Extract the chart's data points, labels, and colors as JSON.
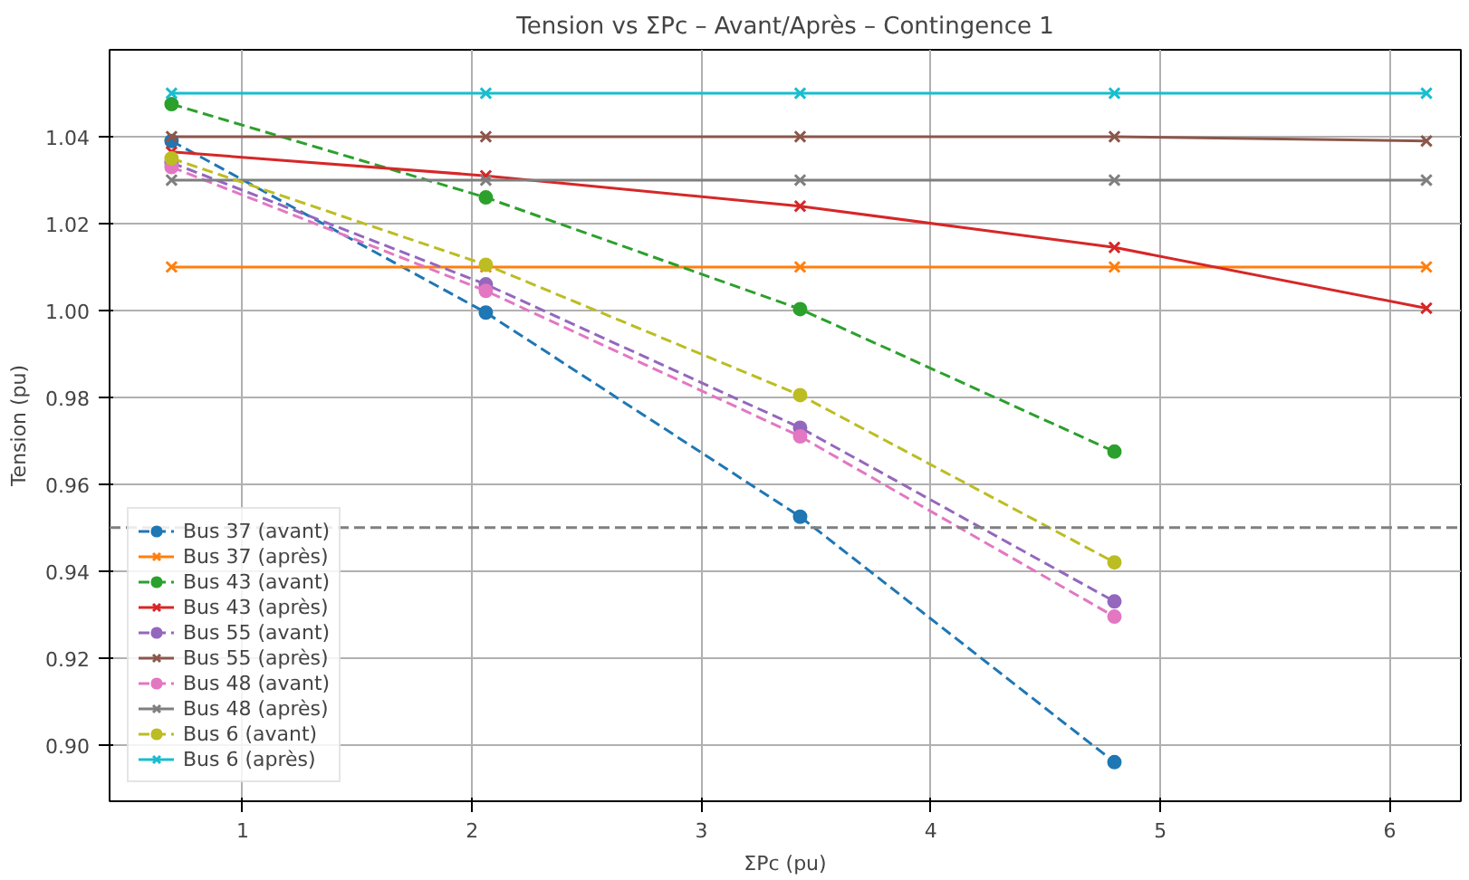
{
  "chart_data": {
    "type": "line",
    "title": "Tension vs ΣPc – Avant/Après – Contingence 1",
    "xlabel": "ΣPc (pu)",
    "ylabel": "Tension (pu)",
    "xlim": [
      0.42,
      6.31
    ],
    "xticks": [
      1,
      2,
      3,
      4,
      5,
      6
    ],
    "ylim": [
      0.887,
      1.06
    ],
    "yticks": [
      {
        "value": 0.9,
        "label": "0.90"
      },
      {
        "value": 0.92,
        "label": "0.92"
      },
      {
        "value": 0.94,
        "label": "0.94"
      },
      {
        "value": 0.96,
        "label": "0.96"
      },
      {
        "value": 0.98,
        "label": "0.98"
      },
      {
        "value": 1.0,
        "label": "1.00"
      },
      {
        "value": 1.02,
        "label": "1.02"
      },
      {
        "value": 1.04,
        "label": "1.04"
      }
    ],
    "grid": true,
    "legend": "bottom left",
    "ref_lines": [
      {
        "axis": "y",
        "value": 0.95,
        "label": null,
        "color": "#808080",
        "line_style": "dashed"
      }
    ],
    "series": [
      {
        "name": "Bus 37 (avant)",
        "color": "#1f77b4",
        "marker": "circle",
        "line_style": "dashed",
        "x": [
          0.69,
          2.06,
          3.43,
          4.8
        ],
        "values": [
          1.039,
          0.9995,
          0.9525,
          0.896
        ]
      },
      {
        "name": "Bus 37 (après)",
        "color": "#ff7f0e",
        "marker": "cross",
        "line_style": "solid",
        "x": [
          0.69,
          2.06,
          3.43,
          4.8,
          6.16
        ],
        "values": [
          1.01,
          1.01,
          1.01,
          1.01,
          1.01
        ]
      },
      {
        "name": "Bus 43 (avant)",
        "color": "#2ca02c",
        "marker": "circle",
        "line_style": "dashed",
        "x": [
          0.69,
          2.06,
          3.43,
          4.8
        ],
        "values": [
          1.0475,
          1.026,
          1.0003,
          0.9675
        ]
      },
      {
        "name": "Bus 43 (après)",
        "color": "#d62728",
        "marker": "cross",
        "line_style": "solid",
        "x": [
          0.69,
          2.06,
          3.43,
          4.8,
          6.16
        ],
        "values": [
          1.0365,
          1.031,
          1.024,
          1.0145,
          1.0005
        ]
      },
      {
        "name": "Bus 55 (avant)",
        "color": "#9467bd",
        "marker": "circle",
        "line_style": "dashed",
        "x": [
          0.69,
          2.06,
          3.43,
          4.8
        ],
        "values": [
          1.034,
          1.006,
          0.973,
          0.933
        ]
      },
      {
        "name": "Bus 55 (après)",
        "color": "#8c564b",
        "marker": "cross",
        "line_style": "solid",
        "x": [
          0.69,
          2.06,
          3.43,
          4.8,
          6.16
        ],
        "values": [
          1.04,
          1.04,
          1.04,
          1.04,
          1.039
        ]
      },
      {
        "name": "Bus 48 (avant)",
        "color": "#e377c2",
        "marker": "circle",
        "line_style": "dashed",
        "x": [
          0.69,
          2.06,
          3.43,
          4.8
        ],
        "values": [
          1.033,
          1.0045,
          0.971,
          0.9295
        ]
      },
      {
        "name": "Bus 48 (après)",
        "color": "#7f7f7f",
        "marker": "cross",
        "line_style": "solid",
        "x": [
          0.69,
          2.06,
          3.43,
          4.8,
          6.16
        ],
        "values": [
          1.03,
          1.03,
          1.03,
          1.03,
          1.03
        ]
      },
      {
        "name": "Bus 6 (avant)",
        "color": "#bcbd22",
        "marker": "circle",
        "line_style": "dashed",
        "x": [
          0.69,
          2.06,
          3.43,
          4.8
        ],
        "values": [
          1.035,
          1.0105,
          0.9805,
          0.942
        ]
      },
      {
        "name": "Bus 6 (après)",
        "color": "#17becf",
        "marker": "cross",
        "line_style": "solid",
        "x": [
          0.69,
          2.06,
          3.43,
          4.8,
          6.16
        ],
        "values": [
          1.05,
          1.05,
          1.05,
          1.05,
          1.05
        ]
      }
    ]
  }
}
